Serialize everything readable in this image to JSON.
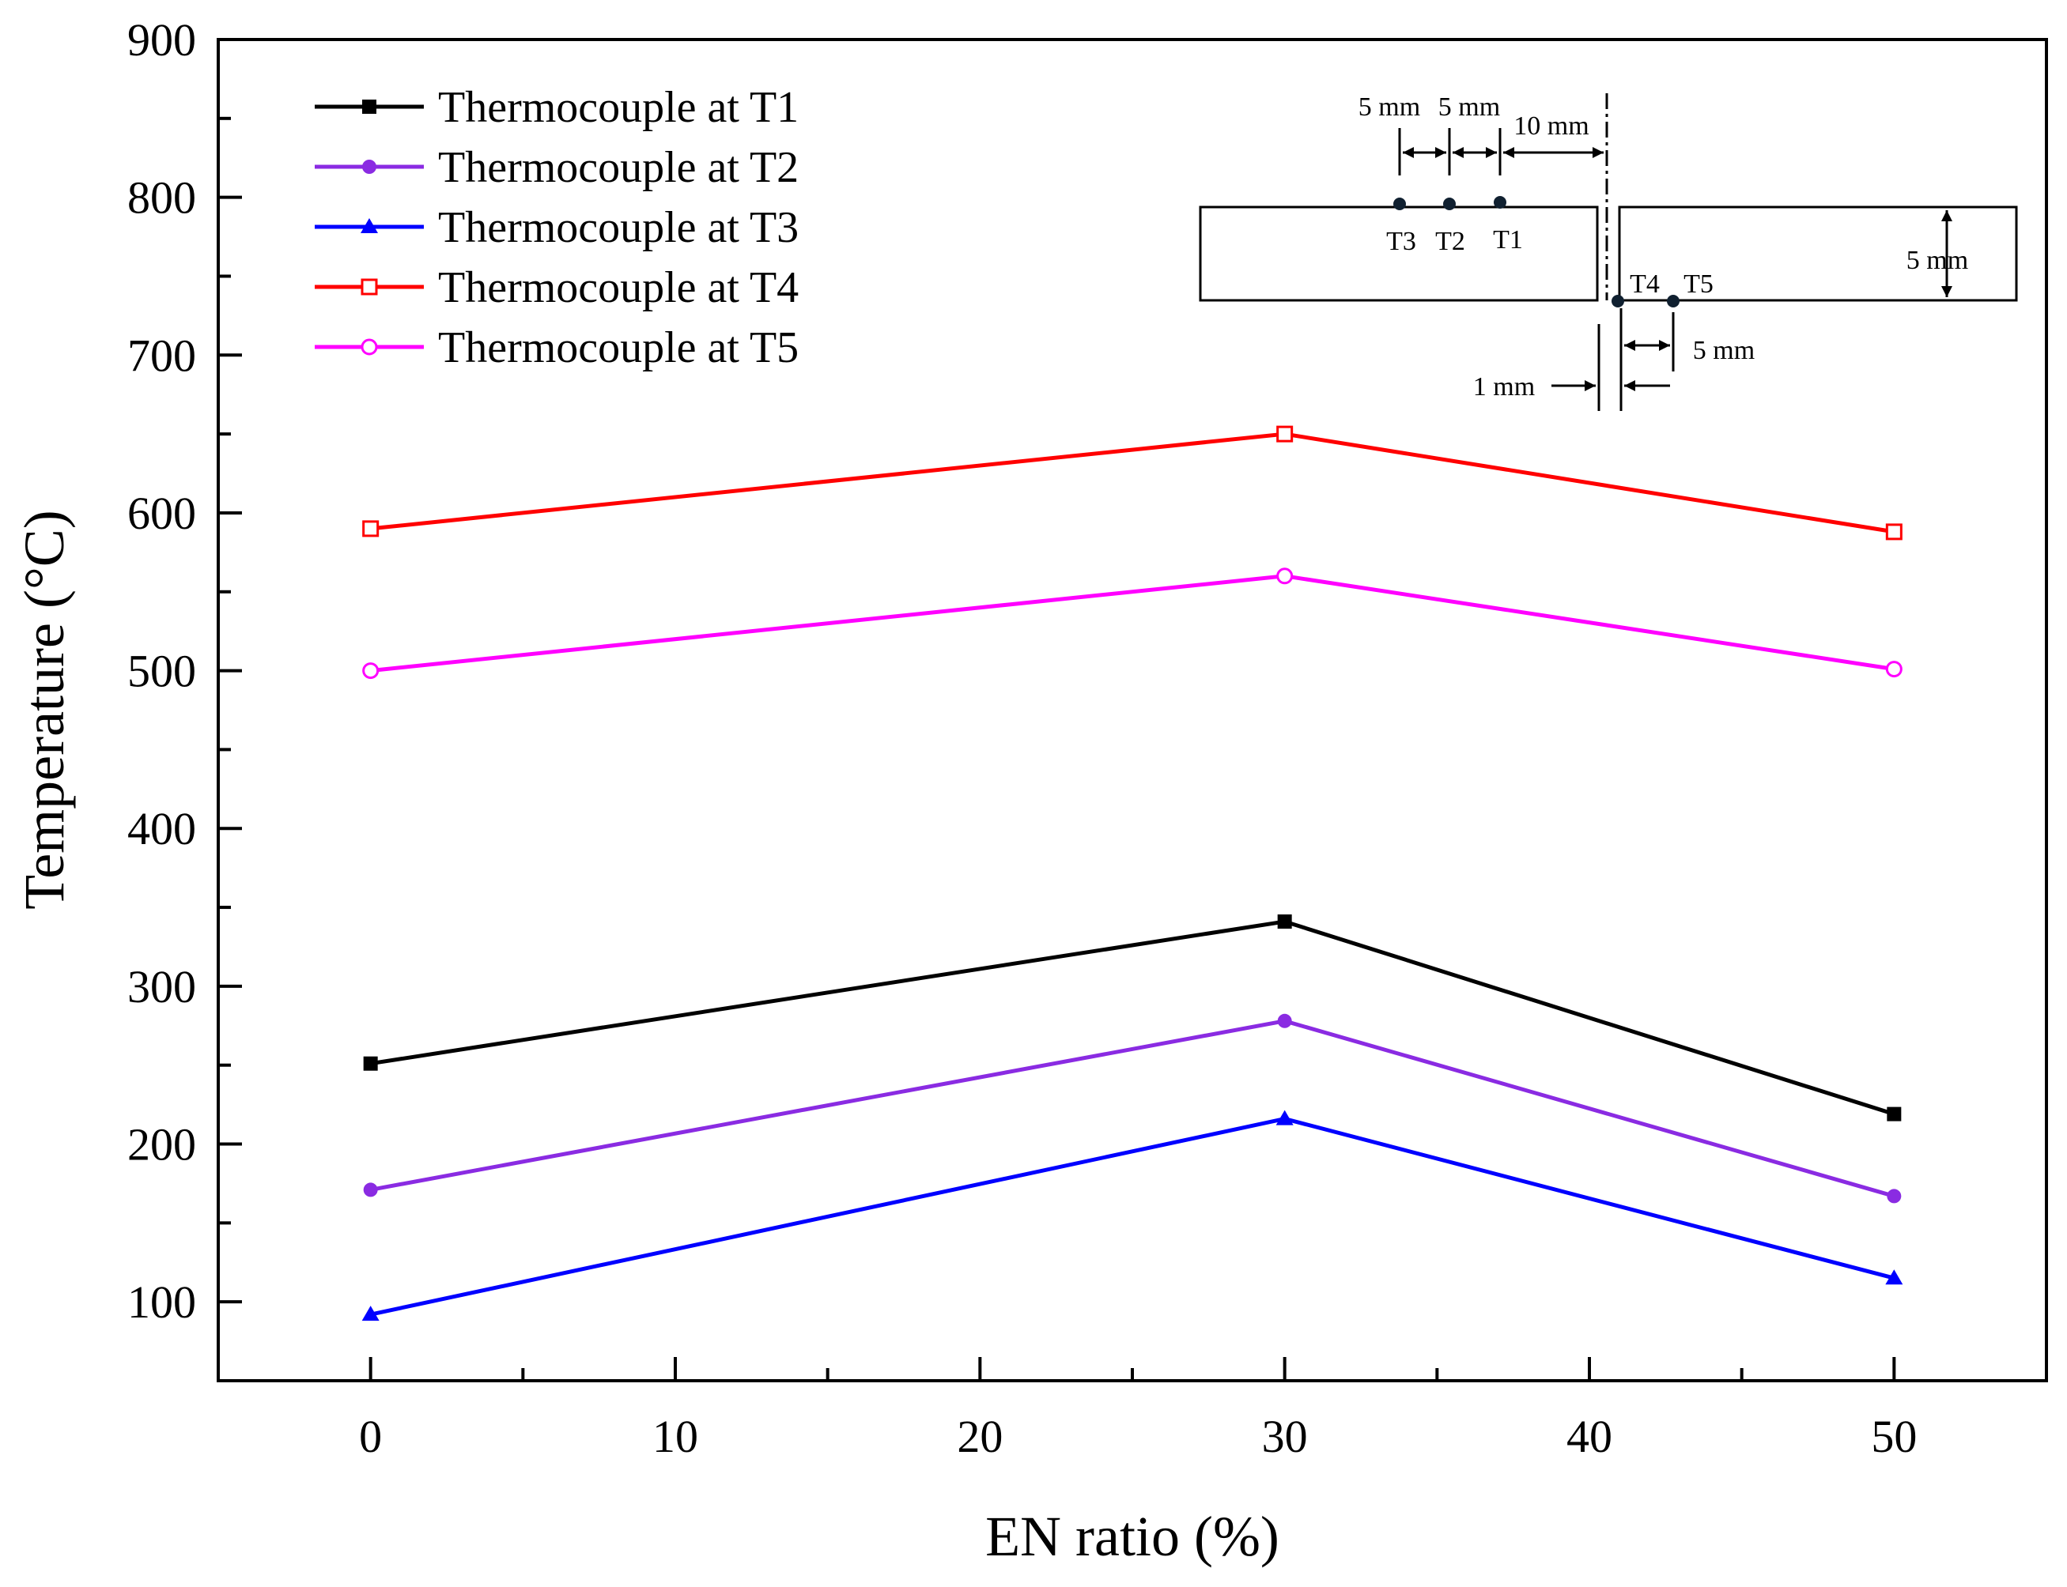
{
  "chart_data": {
    "type": "line",
    "xlabel": "EN ratio (%)",
    "ylabel": "Temperature (°C)",
    "xlim": [
      -5,
      55
    ],
    "ylim": [
      50,
      900
    ],
    "xticks": [
      0,
      10,
      20,
      30,
      40,
      50
    ],
    "yticks": [
      100,
      200,
      300,
      400,
      500,
      600,
      700,
      800,
      900
    ],
    "x": [
      0,
      30,
      50
    ],
    "grid": false,
    "legend_position": "top-left",
    "series": [
      {
        "name": "Thermocouple at T1",
        "values": [
          251,
          341,
          219
        ],
        "color": "#000000",
        "marker": "square-filled"
      },
      {
        "name": "Thermocouple at T2",
        "values": [
          171,
          278,
          167
        ],
        "color": "#8a2be2",
        "marker": "circle-filled"
      },
      {
        "name": "Thermocouple at T3",
        "values": [
          92,
          216,
          115
        ],
        "color": "#0000ff",
        "marker": "triangle-filled"
      },
      {
        "name": "Thermocouple at T4",
        "values": [
          590,
          650,
          588
        ],
        "color": "#ff0000",
        "marker": "square-open"
      },
      {
        "name": "Thermocouple at T5",
        "values": [
          500,
          560,
          501
        ],
        "color": "#ff00ff",
        "marker": "circle-open"
      }
    ]
  },
  "inset": {
    "dim_5mm_a": "5 mm",
    "dim_5mm_b": "5 mm",
    "dim_10mm": "10 mm",
    "dim_thickness": "5 mm",
    "dim_5mm_bottom": "5 mm",
    "dim_1mm": "1 mm",
    "label_t1": "T1",
    "label_t2": "T2",
    "label_t3": "T3",
    "label_t4": "T4",
    "label_t5": "T5"
  }
}
